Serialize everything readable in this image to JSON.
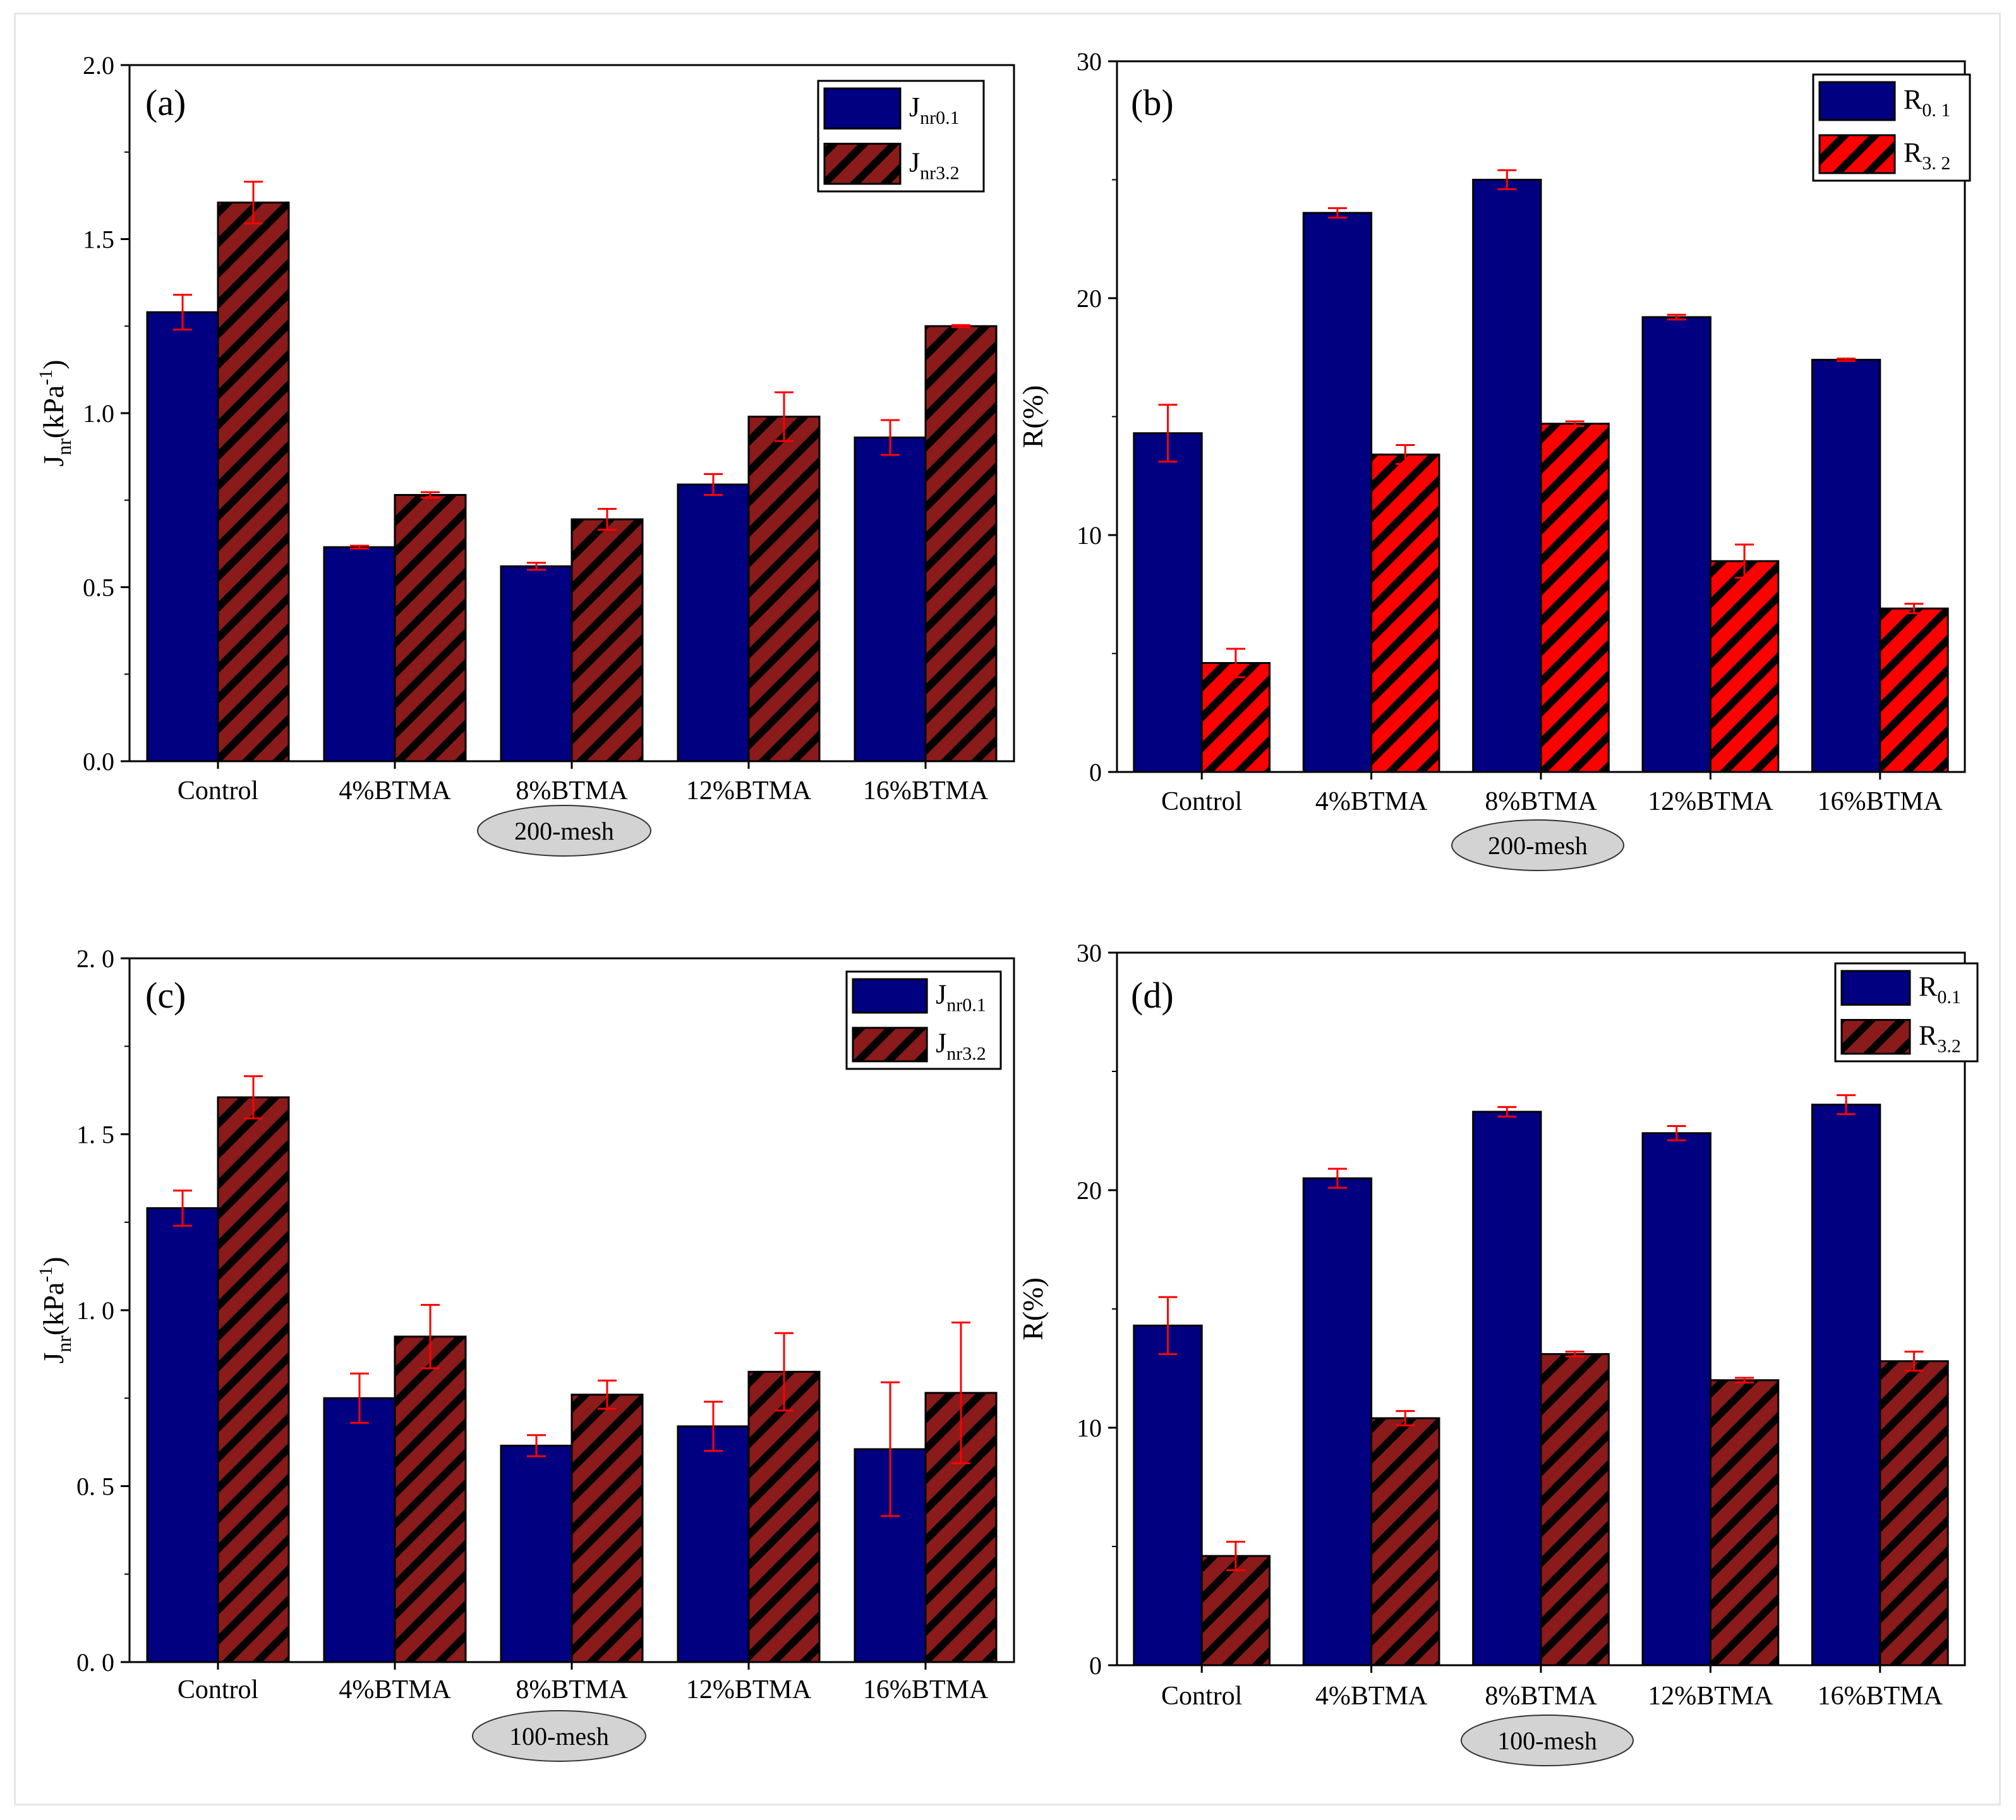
{
  "colors": {
    "blue": "#000080",
    "red_bright": "#ff0000",
    "red_dark": "#8b1a1a",
    "errorbar": "#ff0000",
    "stripe": "#000000",
    "mesh_badge": "#d3d3d3"
  },
  "chart_data": [
    {
      "id": "a",
      "type": "bar",
      "panel_label": "(a)",
      "ylabel_main": "J",
      "ylabel_sub": "nr",
      "ylabel_rest": "(kPa",
      "ylabel_sup": "-1",
      "ylabel_close": ")",
      "ylim": [
        0,
        2.0
      ],
      "yticks": [
        "0.0",
        "0.5",
        "1.0",
        "1.5",
        "2.0"
      ],
      "ytick_values": [
        0,
        0.5,
        1.0,
        1.5,
        2.0
      ],
      "categories": [
        "Control",
        "4%BTMA",
        "8%BTMA",
        "12%BTMA",
        "16%BTMA"
      ],
      "mesh_label": "200-mesh",
      "series": [
        {
          "name_main": "J",
          "name_sub": "nr0.1",
          "style": "blue",
          "values": [
            1.29,
            0.615,
            0.56,
            0.795,
            0.93
          ],
          "errors": [
            0.05,
            0.004,
            0.01,
            0.03,
            0.05
          ]
        },
        {
          "name_main": "J",
          "name_sub": "nr3.2",
          "style": "red_dark",
          "values": [
            1.605,
            0.765,
            0.695,
            0.99,
            1.25
          ],
          "errors": [
            0.06,
            0.008,
            0.03,
            0.07,
            0.003
          ]
        }
      ]
    },
    {
      "id": "b",
      "type": "bar",
      "panel_label": "(b)",
      "ylabel_main": "R(%)",
      "ylabel_sub": "",
      "ylabel_rest": "",
      "ylabel_sup": "",
      "ylabel_close": "",
      "ylim": [
        0,
        30
      ],
      "yticks": [
        "0",
        "10",
        "20",
        "30"
      ],
      "ytick_values": [
        0,
        10,
        20,
        30
      ],
      "categories": [
        "Control",
        "4%BTMA",
        "8%BTMA",
        "12%BTMA",
        "16%BTMA"
      ],
      "mesh_label": "200-mesh",
      "series": [
        {
          "name_main": "R",
          "name_sub": "0. 1",
          "style": "blue",
          "values": [
            14.3,
            23.6,
            25.0,
            19.2,
            17.4
          ],
          "errors": [
            1.2,
            0.2,
            0.4,
            0.1,
            0.05
          ]
        },
        {
          "name_main": "R",
          "name_sub": "3. 2",
          "style": "red_bright",
          "values": [
            4.6,
            13.4,
            14.7,
            8.9,
            6.9
          ],
          "errors": [
            0.6,
            0.4,
            0.1,
            0.7,
            0.2
          ]
        }
      ]
    },
    {
      "id": "c",
      "type": "bar",
      "panel_label": "(c)",
      "ylabel_main": "J",
      "ylabel_sub": "nr",
      "ylabel_rest": "(kPa",
      "ylabel_sup": "-1",
      "ylabel_close": ")",
      "ylim": [
        0,
        2.0
      ],
      "yticks": [
        "0. 0",
        "0. 5",
        "1. 0",
        "1. 5",
        "2. 0"
      ],
      "ytick_values": [
        0,
        0.5,
        1.0,
        1.5,
        2.0
      ],
      "categories": [
        "Control",
        "4%BTMA",
        "8%BTMA",
        "12%BTMA",
        "16%BTMA"
      ],
      "mesh_label": "100-mesh",
      "series": [
        {
          "name_main": "J",
          "name_sub": "nr0.1",
          "style": "blue",
          "values": [
            1.29,
            0.75,
            0.615,
            0.67,
            0.605
          ],
          "errors": [
            0.05,
            0.07,
            0.03,
            0.07,
            0.19
          ]
        },
        {
          "name_main": "J",
          "name_sub": "nr3.2",
          "style": "red_dark",
          "values": [
            1.605,
            0.925,
            0.76,
            0.825,
            0.765
          ],
          "errors": [
            0.06,
            0.09,
            0.04,
            0.11,
            0.2
          ]
        }
      ]
    },
    {
      "id": "d",
      "type": "bar",
      "panel_label": "(d)",
      "ylabel_main": "R(%)",
      "ylabel_sub": "",
      "ylabel_rest": "",
      "ylabel_sup": "",
      "ylabel_close": "",
      "ylim": [
        0,
        30
      ],
      "yticks": [
        "0",
        "10",
        "20",
        "30"
      ],
      "ytick_values": [
        0,
        10,
        20,
        30
      ],
      "categories": [
        "Control",
        "4%BTMA",
        "8%BTMA",
        "12%BTMA",
        "16%BTMA"
      ],
      "mesh_label": "100-mesh",
      "series": [
        {
          "name_main": "R",
          "name_sub": "0.1",
          "style": "blue",
          "values": [
            14.3,
            20.5,
            23.3,
            22.4,
            23.6
          ],
          "errors": [
            1.2,
            0.4,
            0.2,
            0.3,
            0.4
          ]
        },
        {
          "name_main": "R",
          "name_sub": "3.2",
          "style": "red_dark",
          "values": [
            4.6,
            10.4,
            13.1,
            12.0,
            12.8
          ],
          "errors": [
            0.6,
            0.3,
            0.1,
            0.1,
            0.4
          ]
        }
      ]
    }
  ]
}
